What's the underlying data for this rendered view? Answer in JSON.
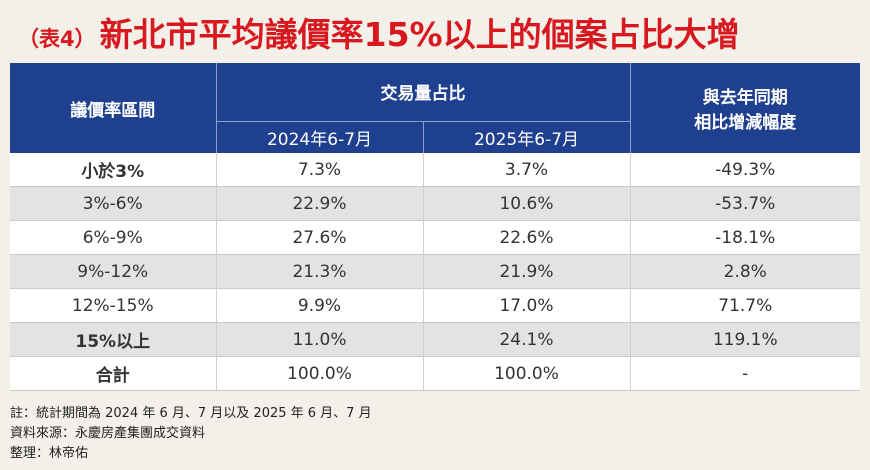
{
  "title": {
    "tag": "（表4）",
    "main": "新北市平均議價率15%以上的個案占比大增"
  },
  "table": {
    "col_range": "議價率區間",
    "col_share": "交易量占比",
    "col_change_line1": "與去年同期",
    "col_change_line2": "相比增減幅度",
    "period_a": "2024年6-7月",
    "period_b": "2025年6-7月",
    "rows": [
      {
        "range": "小於3%",
        "a": "7.3%",
        "b": "3.7%",
        "change": "-49.3%",
        "trend": "neg"
      },
      {
        "range": "3%-6%",
        "a": "22.9%",
        "b": "10.6%",
        "change": "-53.7%",
        "trend": "neg"
      },
      {
        "range": "6%-9%",
        "a": "27.6%",
        "b": "22.6%",
        "change": "-18.1%",
        "trend": "neg"
      },
      {
        "range": "9%-12%",
        "a": "21.3%",
        "b": "21.9%",
        "change": "2.8%",
        "trend": "pos"
      },
      {
        "range": "12%-15%",
        "a": "9.9%",
        "b": "17.0%",
        "change": "71.7%",
        "trend": "pos"
      },
      {
        "range": "15%以上",
        "a": "11.0%",
        "b": "24.1%",
        "change": "119.1%",
        "trend": "pos"
      },
      {
        "range": "合計",
        "a": "100.0%",
        "b": "100.0%",
        "change": "-",
        "trend": "none"
      }
    ]
  },
  "notes": {
    "note": "註：統計期間為 2024 年 6 月、7 月以及 2025 年 6 月、7 月",
    "source": "資料來源：永慶房產集團成交資料",
    "compiled": "整理：林帝佑"
  },
  "colors": {
    "header_bg": "#1f3f8f",
    "title_red": "#d7191f",
    "negative_green": "#2e8b2e",
    "positive_red": "#d7191f"
  }
}
